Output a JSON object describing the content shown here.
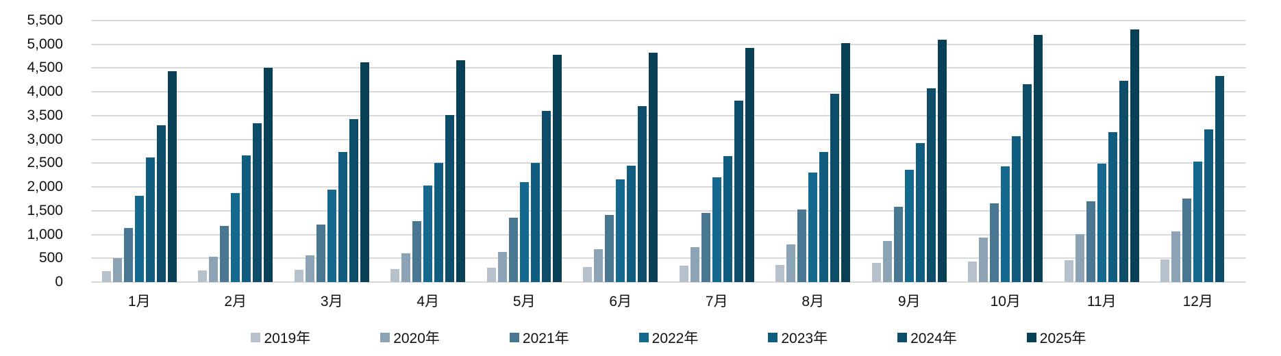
{
  "colors": {
    "background": "#ffffff",
    "gridline": "#d9d9d9",
    "axis_text": "#111111"
  },
  "chart_data": {
    "type": "bar",
    "title": "",
    "xlabel": "",
    "ylabel": "",
    "ylim": [
      0,
      5500
    ],
    "ytick_step": 500,
    "grid": true,
    "legend_position": "bottom",
    "categories": [
      "1月",
      "2月",
      "3月",
      "4月",
      "5月",
      "6月",
      "7月",
      "8月",
      "9月",
      "10月",
      "11月",
      "12月"
    ],
    "series": [
      {
        "name": "2019年",
        "color": "#b7c1cc",
        "values": [
          230,
          245,
          260,
          275,
          300,
          315,
          340,
          365,
          405,
          430,
          455,
          475
        ]
      },
      {
        "name": "2020年",
        "color": "#8ca3b5",
        "values": [
          510,
          540,
          560,
          600,
          635,
          685,
          730,
          790,
          860,
          940,
          1015,
          1060
        ]
      },
      {
        "name": "2021年",
        "color": "#497690",
        "values": [
          1140,
          1175,
          1215,
          1280,
          1355,
          1415,
          1460,
          1525,
          1580,
          1655,
          1700,
          1750
        ]
      },
      {
        "name": "2022年",
        "color": "#15698f",
        "values": [
          1820,
          1865,
          1940,
          2025,
          2100,
          2155,
          2210,
          2300,
          2355,
          2435,
          2495,
          2530
        ]
      },
      {
        "name": "2023年",
        "color": "#115d80",
        "values": [
          2620,
          2660,
          2735,
          2505,
          2510,
          2455,
          2650,
          2735,
          2930,
          3060,
          3160,
          3210
        ]
      },
      {
        "name": "2024年",
        "color": "#0d4d6a",
        "values": [
          3295,
          3340,
          3420,
          3515,
          3605,
          3695,
          3820,
          3960,
          4070,
          4155,
          4240,
          4340
        ]
      },
      {
        "name": "2025年",
        "color": "#0a4055",
        "values": [
          4430,
          4510,
          4620,
          4670,
          4775,
          4825,
          4925,
          5020,
          5090,
          5195,
          5310,
          null
        ]
      }
    ]
  }
}
